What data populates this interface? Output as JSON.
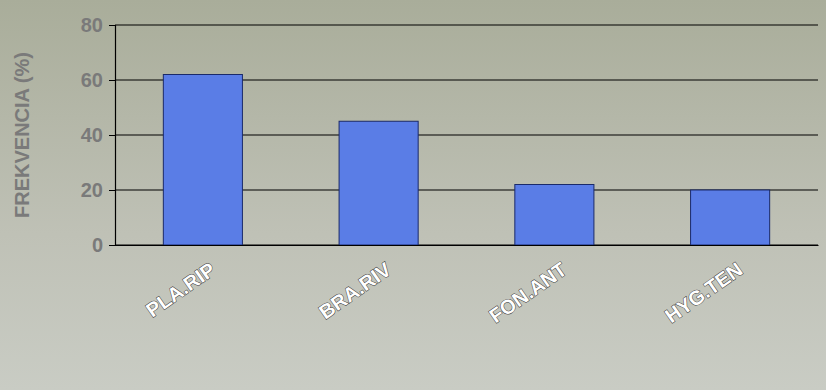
{
  "chart_data": {
    "type": "bar",
    "y_label": "FREKVENCIA (%)",
    "categories": [
      "PLA.RIP",
      "BRA.RIV",
      "FON.ANT",
      "HYG.TEN"
    ],
    "values": [
      62,
      45,
      22,
      20
    ],
    "color": "#5a7de6",
    "ylim": [
      0,
      80
    ],
    "yticks": [
      0,
      20,
      40,
      60,
      80
    ],
    "grid": true
  }
}
